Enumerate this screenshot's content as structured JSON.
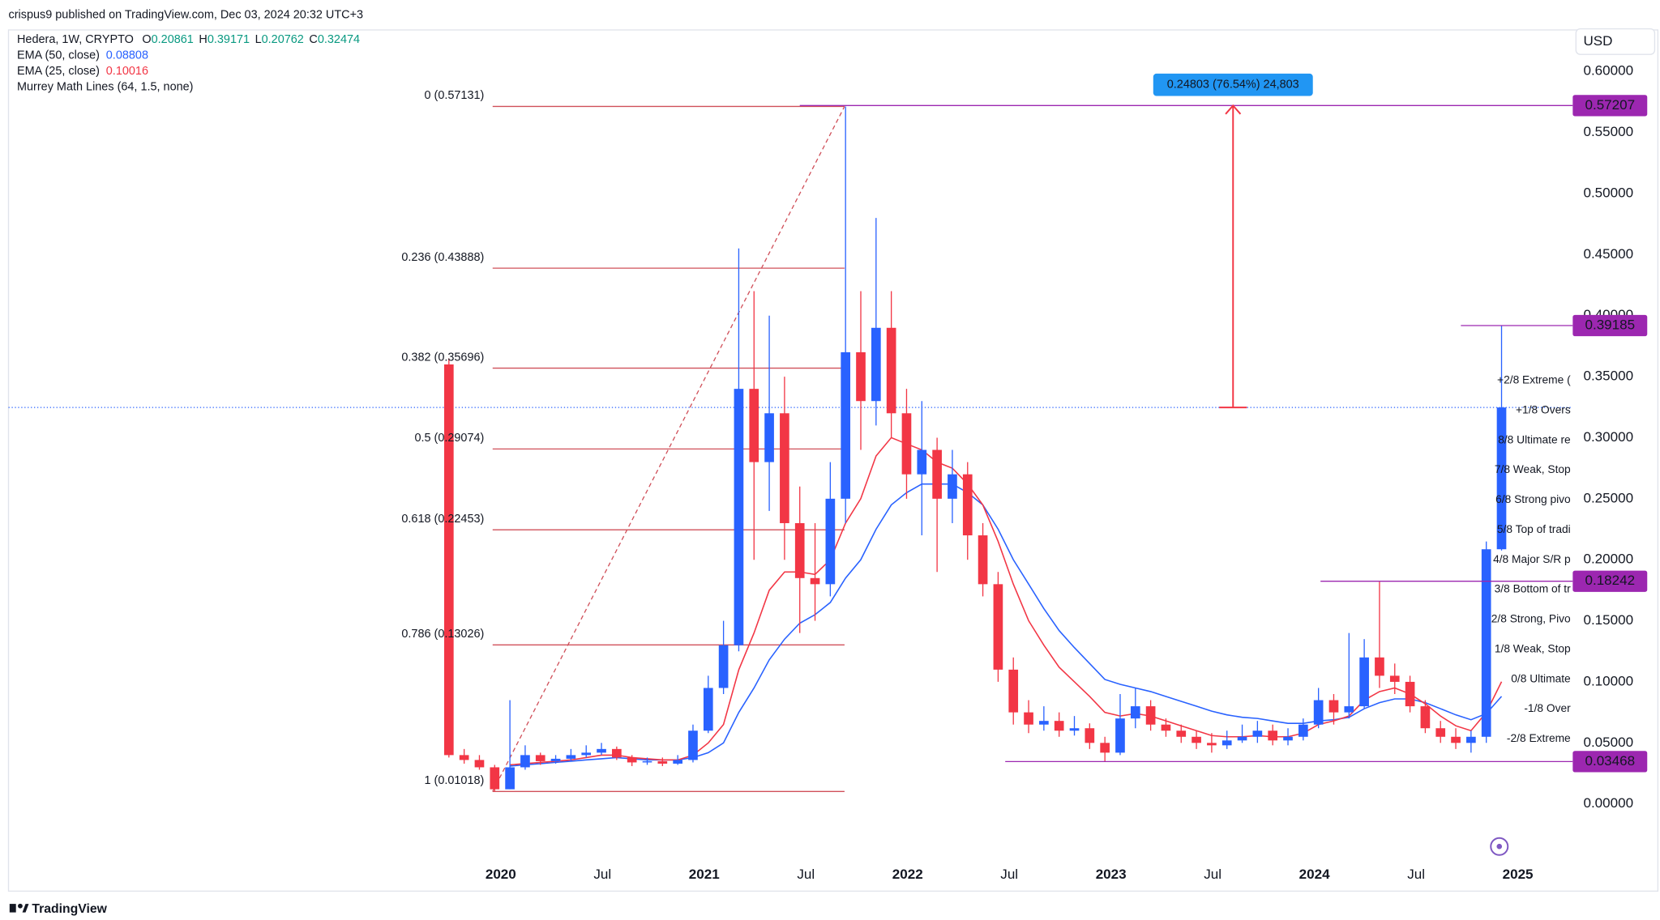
{
  "header": {
    "published": "crispus9 published on TradingView.com, Dec 03, 2024 20:32 UTC+3"
  },
  "chart_data": {
    "type": "candlestick",
    "title": "Hedera, 1W, CRYPTO",
    "currency": "USD",
    "indicator": "Murrey Math Lines (64, 1.5, none)",
    "up_color": "#2962ff",
    "down_color": "#f23645",
    "ohlc_labels": [
      "O",
      "H",
      "L",
      "C"
    ],
    "x": [
      2019.745,
      2019.82,
      2019.895,
      2019.97,
      2020.045,
      2020.12,
      2020.195,
      2020.27,
      2020.345,
      2020.42,
      2020.495,
      2020.57,
      2020.645,
      2020.72,
      2020.795,
      2020.87,
      2020.945,
      2021.02,
      2021.095,
      2021.17,
      2021.245,
      2021.32,
      2021.395,
      2021.47,
      2021.545,
      2021.62,
      2021.695,
      2021.77,
      2021.845,
      2021.92,
      2021.995,
      2022.07,
      2022.145,
      2022.22,
      2022.295,
      2022.37,
      2022.445,
      2022.52,
      2022.595,
      2022.67,
      2022.745,
      2022.82,
      2022.895,
      2022.97,
      2023.045,
      2023.12,
      2023.195,
      2023.27,
      2023.345,
      2023.42,
      2023.495,
      2023.57,
      2023.645,
      2023.72,
      2023.795,
      2023.87,
      2023.945,
      2024.02,
      2024.095,
      2024.17,
      2024.245,
      2024.32,
      2024.395,
      2024.47,
      2024.545,
      2024.62,
      2024.695,
      2024.77,
      2024.845,
      2024.92
    ],
    "open": [
      0.36,
      0.04,
      0.036,
      0.03,
      0.012,
      0.03,
      0.04,
      0.035,
      0.037,
      0.04,
      0.042,
      0.045,
      0.038,
      0.034,
      0.035,
      0.033,
      0.036,
      0.06,
      0.095,
      0.13,
      0.34,
      0.28,
      0.32,
      0.23,
      0.185,
      0.18,
      0.25,
      0.37,
      0.33,
      0.39,
      0.32,
      0.27,
      0.29,
      0.25,
      0.27,
      0.22,
      0.18,
      0.11,
      0.075,
      0.065,
      0.068,
      0.06,
      0.062,
      0.05,
      0.042,
      0.07,
      0.08,
      0.065,
      0.06,
      0.055,
      0.05,
      0.048,
      0.052,
      0.055,
      0.06,
      0.052,
      0.055,
      0.065,
      0.085,
      0.075,
      0.08,
      0.12,
      0.105,
      0.1,
      0.08,
      0.062,
      0.055,
      0.05,
      0.055,
      0.20861
    ],
    "high": [
      0.365,
      0.045,
      0.04,
      0.032,
      0.085,
      0.048,
      0.042,
      0.04,
      0.045,
      0.048,
      0.05,
      0.047,
      0.04,
      0.038,
      0.038,
      0.04,
      0.065,
      0.105,
      0.15,
      0.455,
      0.42,
      0.4,
      0.35,
      0.26,
      0.23,
      0.28,
      0.5713,
      0.42,
      0.48,
      0.42,
      0.34,
      0.33,
      0.3,
      0.29,
      0.28,
      0.23,
      0.19,
      0.12,
      0.085,
      0.08,
      0.075,
      0.072,
      0.066,
      0.055,
      0.09,
      0.095,
      0.085,
      0.07,
      0.065,
      0.06,
      0.058,
      0.06,
      0.065,
      0.068,
      0.065,
      0.062,
      0.07,
      0.095,
      0.09,
      0.14,
      0.135,
      0.182,
      0.115,
      0.105,
      0.085,
      0.068,
      0.062,
      0.06,
      0.215,
      0.39171
    ],
    "low": [
      0.038,
      0.033,
      0.028,
      0.01018,
      0.012,
      0.028,
      0.032,
      0.033,
      0.035,
      0.038,
      0.04,
      0.036,
      0.031,
      0.032,
      0.031,
      0.032,
      0.034,
      0.058,
      0.09,
      0.125,
      0.2,
      0.24,
      0.2,
      0.14,
      0.15,
      0.17,
      0.23,
      0.29,
      0.31,
      0.3,
      0.25,
      0.22,
      0.19,
      0.23,
      0.2,
      0.17,
      0.1,
      0.065,
      0.058,
      0.06,
      0.055,
      0.056,
      0.045,
      0.0347,
      0.04,
      0.062,
      0.06,
      0.055,
      0.05,
      0.045,
      0.042,
      0.045,
      0.05,
      0.05,
      0.048,
      0.048,
      0.052,
      0.062,
      0.065,
      0.07,
      0.078,
      0.095,
      0.09,
      0.075,
      0.058,
      0.05,
      0.045,
      0.042,
      0.05,
      0.20762
    ],
    "close": [
      0.04,
      0.036,
      0.03,
      0.012,
      0.03,
      0.04,
      0.035,
      0.037,
      0.04,
      0.042,
      0.045,
      0.038,
      0.034,
      0.035,
      0.033,
      0.036,
      0.06,
      0.095,
      0.13,
      0.34,
      0.28,
      0.32,
      0.23,
      0.185,
      0.18,
      0.25,
      0.37,
      0.33,
      0.39,
      0.32,
      0.27,
      0.29,
      0.25,
      0.27,
      0.22,
      0.18,
      0.11,
      0.075,
      0.065,
      0.068,
      0.06,
      0.062,
      0.05,
      0.042,
      0.07,
      0.08,
      0.065,
      0.06,
      0.055,
      0.05,
      0.048,
      0.052,
      0.055,
      0.06,
      0.052,
      0.055,
      0.065,
      0.085,
      0.075,
      0.08,
      0.12,
      0.105,
      0.1,
      0.08,
      0.062,
      0.055,
      0.05,
      0.055,
      0.20861,
      0.32474
    ],
    "series": [
      {
        "name": "EMA (50, close)",
        "color": "#2962ff",
        "values": [
          null,
          null,
          null,
          null,
          0.031,
          0.032,
          0.033,
          0.034,
          0.035,
          0.036,
          0.037,
          0.038,
          0.037,
          0.036,
          0.036,
          0.036,
          0.038,
          0.042,
          0.05,
          0.075,
          0.095,
          0.118,
          0.135,
          0.148,
          0.155,
          0.165,
          0.185,
          0.2,
          0.225,
          0.245,
          0.255,
          0.262,
          0.262,
          0.262,
          0.255,
          0.245,
          0.225,
          0.2,
          0.18,
          0.16,
          0.142,
          0.128,
          0.115,
          0.102,
          0.098,
          0.095,
          0.092,
          0.088,
          0.084,
          0.08,
          0.076,
          0.073,
          0.071,
          0.07,
          0.068,
          0.066,
          0.066,
          0.068,
          0.069,
          0.071,
          0.078,
          0.083,
          0.086,
          0.086,
          0.083,
          0.078,
          0.073,
          0.069,
          0.074,
          0.08808
        ]
      },
      {
        "name": "EMA (25, close)",
        "color": "#f23645",
        "values": [
          null,
          null,
          null,
          null,
          0.032,
          0.033,
          0.034,
          0.035,
          0.036,
          0.038,
          0.04,
          0.04,
          0.038,
          0.037,
          0.036,
          0.036,
          0.04,
          0.05,
          0.065,
          0.11,
          0.14,
          0.175,
          0.19,
          0.19,
          0.188,
          0.2,
          0.23,
          0.25,
          0.285,
          0.3,
          0.295,
          0.29,
          0.28,
          0.275,
          0.262,
          0.245,
          0.215,
          0.18,
          0.15,
          0.13,
          0.112,
          0.1,
          0.088,
          0.075,
          0.072,
          0.074,
          0.072,
          0.068,
          0.064,
          0.06,
          0.056,
          0.055,
          0.055,
          0.056,
          0.055,
          0.055,
          0.058,
          0.065,
          0.068,
          0.072,
          0.085,
          0.092,
          0.095,
          0.09,
          0.082,
          0.072,
          0.064,
          0.06,
          0.075,
          0.10016
        ]
      }
    ],
    "fib": {
      "color": "#d0505a",
      "x_range": [
        2019.96,
        2021.69
      ],
      "levels": [
        {
          "value": 0.57131,
          "label": "0 (0.57131)"
        },
        {
          "value": 0.43888,
          "label": "0.236 (0.43888)"
        },
        {
          "value": 0.35696,
          "label": "0.382 (0.35696)"
        },
        {
          "value": 0.29074,
          "label": "0.5 (0.29074)"
        },
        {
          "value": 0.22453,
          "label": "0.618 (0.22453)"
        },
        {
          "value": 0.13026,
          "label": "0.786 (0.13026)"
        },
        {
          "value": 0.01018,
          "label": "1 (0.01018)"
        }
      ]
    },
    "hlines": {
      "color": "#9c27b0",
      "lines": [
        {
          "value": 0.57207,
          "start": 2021.47
        },
        {
          "value": 0.39185,
          "start": 2024.72
        },
        {
          "value": 0.18242,
          "start": 2024.03
        },
        {
          "value": 0.03468,
          "start": 2022.48
        }
      ]
    },
    "measure": {
      "x": 2023.6,
      "label": "0.24803 (76.54%) 24,803"
    },
    "murrey": [
      {
        "value": 0.3467,
        "label": "+2/8 Extreme (",
        "color": "#f06d74"
      },
      {
        "value": 0.3222,
        "label": "+1/8 Overs",
        "color": "#f06d74"
      },
      {
        "value": 0.2978,
        "label": "8/8 Ultimate re",
        "color": "#22a9c9"
      },
      {
        "value": 0.2734,
        "label": "7/8 Weak, Stop",
        "color": "#f4962e"
      },
      {
        "value": 0.2489,
        "label": "6/8 Strong pivo",
        "color": "#d44fd8"
      },
      {
        "value": 0.2245,
        "label": "5/8 Top of tradi",
        "color": "#4caf50"
      },
      {
        "value": 0.2,
        "label": "4/8 Major S/R p",
        "color": "#22a9c9"
      },
      {
        "value": 0.1756,
        "label": "3/8 Bottom of tr",
        "color": "#4caf50"
      },
      {
        "value": 0.1511,
        "label": "2/8 Strong, Pivo",
        "color": "#d44fd8"
      },
      {
        "value": 0.1267,
        "label": "1/8 Weak, Stop",
        "color": "#f4962e"
      },
      {
        "value": 0.1022,
        "label": "0/8 Ultimate",
        "color": "#22a9c9"
      },
      {
        "value": 0.0778,
        "label": "-1/8 Over",
        "color": "#4caf50"
      },
      {
        "value": 0.0533,
        "label": "-2/8 Extreme",
        "color": "#4caf50"
      }
    ],
    "xlim": [
      2017.58,
      2025.27
    ],
    "ylim": [
      -0.0453,
      0.634
    ],
    "grid": false,
    "xticks": [
      {
        "value": 2020,
        "label": "2020"
      },
      {
        "value": 2020.5,
        "label": "Jul"
      },
      {
        "value": 2021,
        "label": "2021"
      },
      {
        "value": 2021.5,
        "label": "Jul"
      },
      {
        "value": 2022,
        "label": "2022"
      },
      {
        "value": 2022.5,
        "label": "Jul"
      },
      {
        "value": 2023,
        "label": "2023"
      },
      {
        "value": 2023.5,
        "label": "Jul"
      },
      {
        "value": 2024,
        "label": "2024"
      },
      {
        "value": 2024.5,
        "label": "Jul"
      },
      {
        "value": 2025,
        "label": "2025"
      }
    ],
    "yticks": [
      {
        "value": 0,
        "label": "0.00000"
      },
      {
        "value": 0.05,
        "label": "0.05000"
      },
      {
        "value": 0.1,
        "label": "0.10000"
      },
      {
        "value": 0.15,
        "label": "0.15000"
      },
      {
        "value": 0.2,
        "label": "0.20000"
      },
      {
        "value": 0.25,
        "label": "0.25000"
      },
      {
        "value": 0.3,
        "label": "0.30000"
      },
      {
        "value": 0.35,
        "label": "0.35000"
      },
      {
        "value": 0.4,
        "label": "0.40000"
      },
      {
        "value": 0.45,
        "label": "0.45000"
      },
      {
        "value": 0.5,
        "label": "0.50000"
      },
      {
        "value": 0.55,
        "label": "0.55000"
      },
      {
        "value": 0.6,
        "label": "0.60000"
      }
    ]
  },
  "footer": {
    "brand": "TradingView"
  }
}
